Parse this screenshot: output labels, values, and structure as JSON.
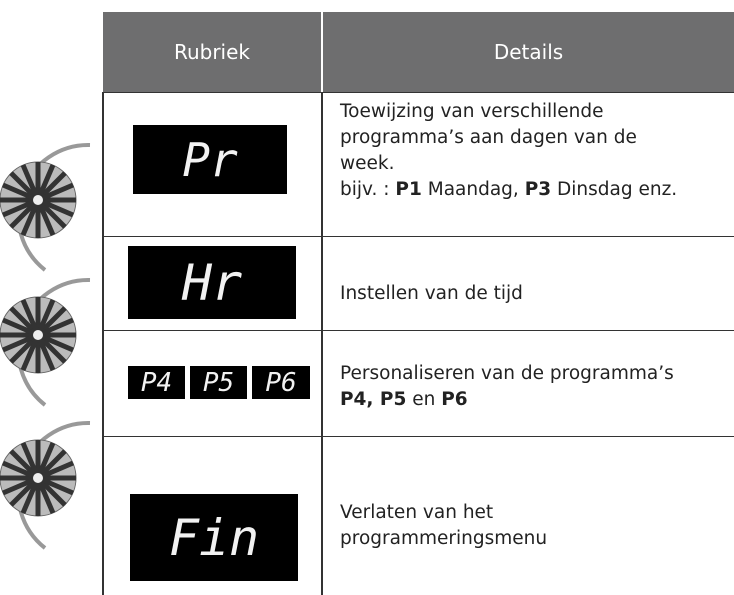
{
  "table": {
    "header": [
      "Rubriek",
      "Details"
    ],
    "rows": [
      {
        "display": [
          "Pr"
        ],
        "details": [
          [
            {
              "text": "Toewijzing van verschillende"
            }
          ],
          [
            {
              "text": "programma’s aan dagen van de"
            }
          ],
          [
            {
              "text": "week."
            }
          ],
          [
            {
              "text": "bijv. : "
            },
            {
              "text": "P1",
              "bold": true
            },
            {
              "text": " Maandag, "
            },
            {
              "text": "P3",
              "bold": true
            },
            {
              "text": " Dinsdag enz."
            }
          ]
        ]
      },
      {
        "display": [
          "Hr"
        ],
        "details": [
          [
            {
              "text": "Instellen van de tijd"
            }
          ]
        ]
      },
      {
        "display": [
          "P4",
          "P5",
          "P6"
        ],
        "details": [
          [
            {
              "text": "Personaliseren van de programma’s"
            }
          ],
          [
            {
              "text": "P4, P5",
              "bold": true
            },
            {
              "text": " en "
            },
            {
              "text": "P6",
              "bold": true
            }
          ]
        ]
      },
      {
        "display": [
          "Fin"
        ],
        "details": [
          [
            {
              "text": "Verlaten van het"
            }
          ],
          [
            {
              "text": "programmeringsmenu"
            }
          ]
        ]
      }
    ]
  }
}
